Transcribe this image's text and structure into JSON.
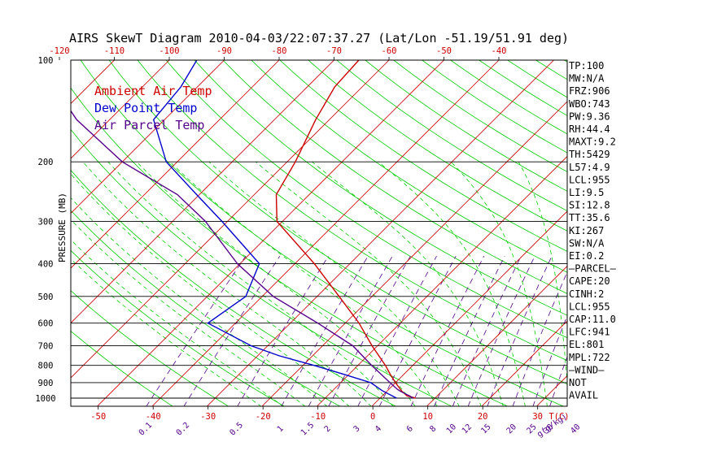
{
  "chart_data": {
    "type": "line",
    "title": "AIRS SkewT Diagram 2010-04-03/22:07:37.27 (Lat/Lon -51.19/51.91 deg)",
    "ylabel": "PRESSURE (MB)",
    "y_scale": "log",
    "y_reversed": true,
    "ylim": [
      1050,
      100
    ],
    "pressure_ticks": [
      100,
      200,
      300,
      400,
      500,
      600,
      700,
      800,
      900,
      1000
    ],
    "temp_ticks_top": [
      "-120",
      "-110",
      "-100",
      "-90",
      "-80",
      "-70",
      "-60",
      "-50",
      "-40"
    ],
    "temp_ticks_bottom": [
      "-50",
      "-40",
      "-30",
      "-20",
      "-10",
      "0",
      "10",
      "20",
      "30"
    ],
    "temp_axis_label": "T(C)",
    "mixing_ratio_ticks": [
      "0.1",
      "0.2",
      "0.5",
      "1",
      "1.5",
      "2",
      "3",
      "4",
      "6",
      "8",
      "10",
      "12",
      "15",
      "20",
      "25",
      "30",
      "40"
    ],
    "mixing_ratio_label": "g(g/kg)",
    "colors": {
      "ambient": "#cc0000",
      "dewpoint": "#0000cc",
      "parcel": "#55008a",
      "isotherm": "#cc0000",
      "dry_adiabat": "#00cc00",
      "moist_adiabat": "#00cc00",
      "mixing_ratio": "#55008a",
      "isobar": "#000000"
    },
    "legend": [
      "Ambient Air Temp",
      "Dew Point Temp",
      "Air Parcel Temp"
    ],
    "series": [
      {
        "name": "Ambient Air Temp",
        "key": "ambient",
        "values": [
          {
            "p": 1000,
            "t": 6.5
          },
          {
            "p": 985,
            "t": 4.5
          },
          {
            "p": 950,
            "t": 2.5
          },
          {
            "p": 900,
            "t": 0.0
          },
          {
            "p": 850,
            "t": -2.5
          },
          {
            "p": 800,
            "t": -5.0
          },
          {
            "p": 700,
            "t": -11.0
          },
          {
            "p": 600,
            "t": -17.5
          },
          {
            "p": 500,
            "t": -26.0
          },
          {
            "p": 400,
            "t": -36.5
          },
          {
            "p": 300,
            "t": -51.0
          },
          {
            "p": 250,
            "t": -56.0
          },
          {
            "p": 200,
            "t": -58.5
          },
          {
            "p": 150,
            "t": -62.5
          },
          {
            "p": 120,
            "t": -65.0
          },
          {
            "p": 100,
            "t": -65.5
          }
        ]
      },
      {
        "name": "Dew Point Temp",
        "key": "dewpoint",
        "values": [
          {
            "p": 1000,
            "t": 3.0
          },
          {
            "p": 950,
            "t": -1.0
          },
          {
            "p": 900,
            "t": -4.5
          },
          {
            "p": 850,
            "t": -11.0
          },
          {
            "p": 800,
            "t": -18.0
          },
          {
            "p": 750,
            "t": -26.0
          },
          {
            "p": 700,
            "t": -33.0
          },
          {
            "p": 600,
            "t": -45.0
          },
          {
            "p": 500,
            "t": -43.0
          },
          {
            "p": 400,
            "t": -46.5
          },
          {
            "p": 300,
            "t": -61.0
          },
          {
            "p": 250,
            "t": -70.5
          },
          {
            "p": 200,
            "t": -82.0
          },
          {
            "p": 150,
            "t": -92.0
          },
          {
            "p": 120,
            "t": -93.0
          },
          {
            "p": 100,
            "t": -95.0
          }
        ]
      },
      {
        "name": "Air Parcel Temp",
        "key": "parcel",
        "values": [
          {
            "p": 1000,
            "t": 6.0
          },
          {
            "p": 985,
            "t": 5.0
          },
          {
            "p": 955,
            "t": 2.5
          },
          {
            "p": 941,
            "t": 1.5
          },
          {
            "p": 900,
            "t": -1.0
          },
          {
            "p": 800,
            "t": -7.5
          },
          {
            "p": 700,
            "t": -14.5
          },
          {
            "p": 600,
            "t": -25.0
          },
          {
            "p": 500,
            "t": -38.0
          },
          {
            "p": 400,
            "t": -50.5
          },
          {
            "p": 300,
            "t": -64.0
          },
          {
            "p": 250,
            "t": -74.0
          },
          {
            "p": 200,
            "t": -90.0
          },
          {
            "p": 150,
            "t": -106.0
          },
          {
            "p": 120,
            "t": -116.0
          },
          {
            "p": 100,
            "t": -124.0
          }
        ]
      }
    ]
  },
  "indices": [
    "TP:100",
    "MW:N/A",
    "FRZ:906",
    "WBO:743",
    "PW:9.36",
    "RH:44.4",
    "MAXT:9.2",
    "TH:5429",
    "L57:4.9",
    "LCL:955",
    "LI:9.5",
    "SI:12.8",
    "TT:35.6",
    "KI:267",
    "SW:N/A",
    "EI:0.2",
    "—PARCEL—",
    "CAPE:20",
    "CINH:2",
    "LCL:955",
    "CAP:11.0",
    "LFC:941",
    "EL:801",
    "MPL:722",
    "—WIND—",
    "NOT",
    "AVAIL"
  ]
}
